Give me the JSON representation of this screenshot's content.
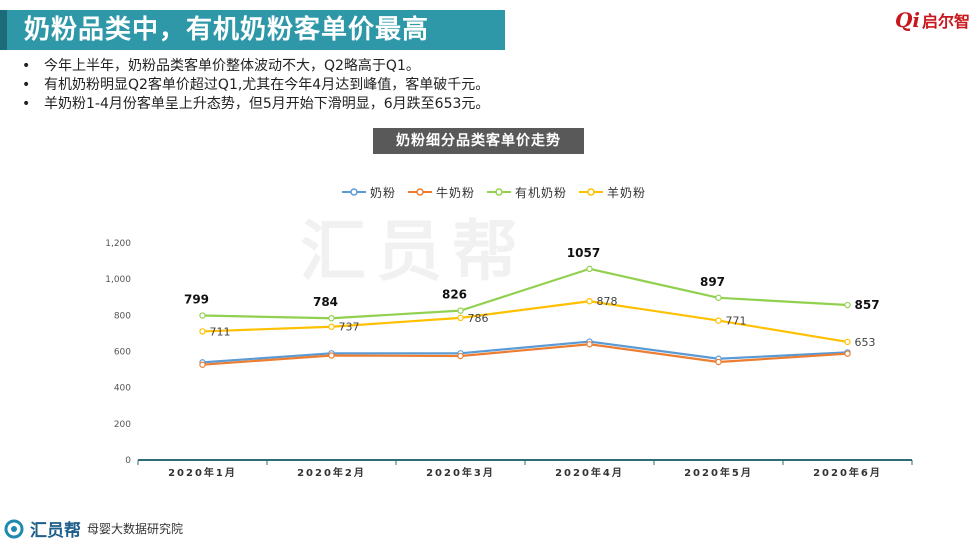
{
  "header": {
    "title": "奶粉品类中，有机奶粉客单价最高",
    "logo_mark": "Qi",
    "logo_name": "启尔智"
  },
  "bullets": [
    "今年上半年，奶粉品类客单价整体波动不大，Q2略高于Q1。",
    "有机奶粉明显Q2客单价超过Q1,尤其在今年4月达到峰值，客单破千元。",
    "羊奶粉1-4月份客单呈上升态势，但5月开始下滑明显，6月跌至653元。"
  ],
  "bullet_char": "•",
  "watermark": "汇员帮",
  "footer": {
    "brand": "汇员帮",
    "org": "母婴大数据研究院"
  },
  "chart_data": {
    "type": "line",
    "title": "奶粉细分品类客单价走势",
    "categories": [
      "2020年1月",
      "2020年2月",
      "2020年3月",
      "2020年4月",
      "2020年5月",
      "2020年6月"
    ],
    "ylim": [
      0,
      1200
    ],
    "yticks": [
      "0",
      "200",
      "400",
      "600",
      "800",
      "1,000",
      "1,200"
    ],
    "ytick_values": [
      0,
      200,
      400,
      600,
      800,
      1000,
      1200
    ],
    "grid": false,
    "legend_position": "top",
    "series": [
      {
        "name": "奶粉",
        "color": "#5b9bd5",
        "values": [
          540,
          590,
          590,
          655,
          560,
          595
        ],
        "labels": null,
        "label_style": "none"
      },
      {
        "name": "牛奶粉",
        "color": "#ed7d31",
        "values": [
          527,
          578,
          575,
          640,
          542,
          588
        ],
        "labels": null,
        "label_style": "none"
      },
      {
        "name": "有机奶粉",
        "color": "#92d050",
        "values": [
          799,
          784,
          826,
          1057,
          897,
          857
        ],
        "labels": [
          "799",
          "784",
          "826",
          "1057",
          "897",
          "857"
        ],
        "label_style": "bold"
      },
      {
        "name": "羊奶粉",
        "color": "#ffc000",
        "values": [
          711,
          737,
          786,
          878,
          771,
          653
        ],
        "labels": [
          "711",
          "737",
          "786",
          "878",
          "771",
          "653"
        ],
        "label_style": "normal"
      }
    ]
  }
}
